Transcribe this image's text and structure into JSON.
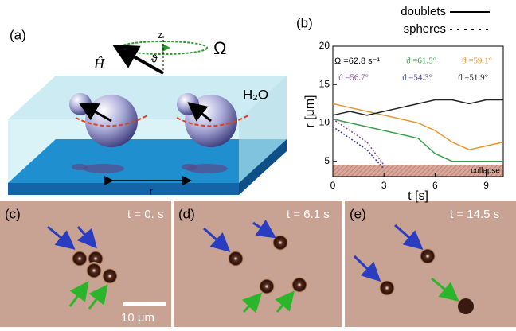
{
  "panel_a": {
    "label": "(a)",
    "z": "z",
    "theta": "ϑ",
    "omega": "Ω",
    "field": "Ĥ",
    "medium": "H₂O",
    "distance": "r"
  },
  "chart_data": {
    "type": "line",
    "panel_label": "(b)",
    "x_label": "t [s]",
    "y_label": "r [μm]",
    "x": [
      0,
      1,
      2,
      3,
      4,
      5,
      6,
      7,
      8,
      9,
      10
    ],
    "xlim": [
      0,
      10
    ],
    "xticks": [
      0,
      3,
      6,
      9
    ],
    "ylim": [
      3,
      20
    ],
    "yticks": [
      5,
      10,
      15,
      20
    ],
    "annotation": "Ω =62.8 s⁻¹",
    "line_legend": [
      {
        "label": "doublets",
        "dashed": false
      },
      {
        "label": "spheres",
        "dashed": true
      }
    ],
    "collapse_band": {
      "label": "collapse",
      "range": [
        3,
        4.5
      ]
    },
    "series": [
      {
        "name": "ϑ =61.5°",
        "color": "#3aa04a",
        "dashed": false,
        "values": [
          10.5,
          10,
          9.5,
          9,
          8.5,
          8,
          6,
          5,
          5,
          5,
          5
        ]
      },
      {
        "name": "ϑ =59.1°",
        "color": "#e8962a",
        "dashed": false,
        "values": [
          12.5,
          12,
          11.5,
          11,
          10.5,
          10,
          9,
          7.5,
          6.5,
          7,
          7.5
        ]
      },
      {
        "name": "ϑ =56.7°",
        "color": "#8a3fa0",
        "dashed": true,
        "values": [
          10.5,
          9,
          7.5,
          4.5,
          null,
          null,
          null,
          null,
          null,
          null,
          null
        ]
      },
      {
        "name": "ϑ =54.3°",
        "color": "#3b3f9a",
        "dashed": true,
        "values": [
          9.5,
          8,
          6.5,
          4,
          null,
          null,
          null,
          null,
          null,
          null,
          null
        ]
      },
      {
        "name": "ϑ =51.9°",
        "color": "#222222",
        "dashed": false,
        "values": [
          11,
          11.5,
          11,
          11.5,
          12,
          12.5,
          13,
          13,
          12.5,
          13,
          13
        ]
      }
    ]
  },
  "panel_c": {
    "label": "(c)",
    "time": "t = 0. s",
    "scale": "10 μm"
  },
  "panel_d": {
    "label": "(d)",
    "time": "t = 6.1 s"
  },
  "panel_e": {
    "label": "(e)",
    "time": "t = 14.5 s"
  }
}
